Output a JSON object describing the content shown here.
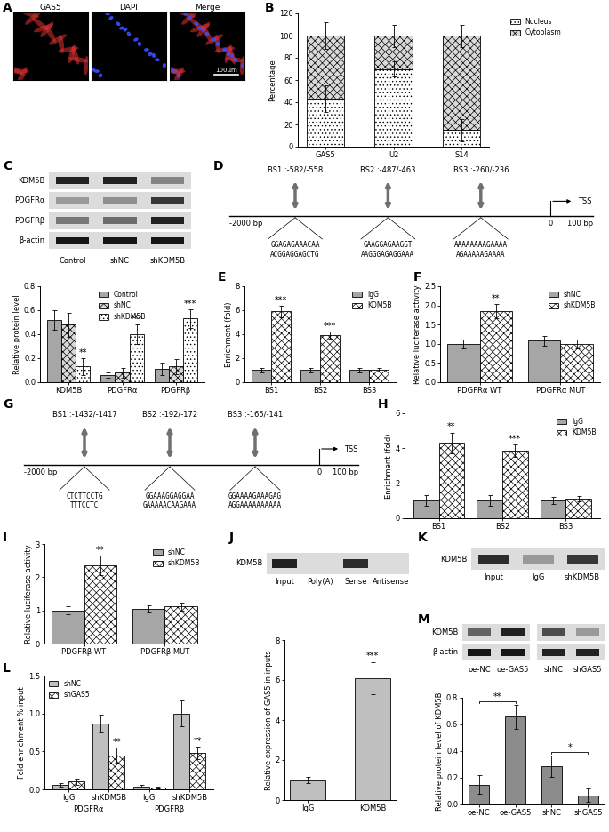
{
  "chart_data": [
    {
      "panel_label": "B",
      "type": "bar",
      "stacked": true,
      "categories": [
        "GAS5",
        "U2",
        "S14"
      ],
      "series": [
        {
          "name": "Nucleus",
          "color": "#ffffff",
          "values": [
            43,
            70,
            15
          ],
          "error": [
            12,
            7,
            10
          ]
        },
        {
          "name": "Cytoplasm",
          "color": "#d9d9d9",
          "values": [
            57,
            30,
            85
          ],
          "error": [
            12,
            10,
            10
          ]
        }
      ],
      "ylabel": "Percentage",
      "ylim": [
        0,
        120
      ],
      "yticks": [
        0,
        20,
        40,
        60,
        80,
        100,
        120
      ],
      "legend": "upper right"
    },
    {
      "type": "bar",
      "categories": [
        "KDM5B",
        "PDGFRα",
        "PDGFRβ"
      ],
      "series": [
        {
          "name": "Control",
          "color": "#a6a6a6",
          "values": [
            0.52,
            0.06,
            0.11
          ],
          "error": [
            0.08,
            0.02,
            0.05
          ]
        },
        {
          "name": "shNC",
          "color": "#d9d9d9",
          "values": [
            0.48,
            0.08,
            0.13
          ],
          "error": [
            0.1,
            0.04,
            0.06
          ]
        },
        {
          "name": "shKDM5B",
          "color": "#ffffff",
          "values": [
            0.13,
            0.4,
            0.53
          ],
          "error": [
            0.07,
            0.08,
            0.08
          ]
        }
      ],
      "ylabel": "Relative protein level",
      "ylim": [
        0.0,
        0.8
      ],
      "yticks": [
        0.0,
        0.2,
        0.4,
        0.6,
        0.8
      ],
      "legend": "upper center",
      "annotations": [
        {
          "category": 0,
          "series": "shKDM5B",
          "text": "**"
        },
        {
          "category": 1,
          "series": "shKDM5B",
          "text": "***"
        },
        {
          "category": 2,
          "series": "shKDM5B",
          "text": "***"
        }
      ]
    },
    {
      "panel_label": "E",
      "type": "bar",
      "categories": [
        "BS1",
        "BS2",
        "BS3"
      ],
      "series": [
        {
          "name": "IgG",
          "color": "#a6a6a6",
          "values": [
            1,
            1,
            1
          ],
          "error": [
            0.2,
            0.15,
            0.2
          ]
        },
        {
          "name": "KDM5B",
          "color": "#ffffff",
          "values": [
            5.9,
            3.9,
            1.05
          ],
          "error": [
            0.5,
            0.3,
            0.15
          ]
        }
      ],
      "ylabel": "Enrichment (fold)",
      "ylim": [
        0,
        8
      ],
      "yticks": [
        0,
        2,
        4,
        6,
        8
      ],
      "legend": "upper right",
      "annotations": [
        {
          "category": 0,
          "series": "KDM5B",
          "text": "***"
        },
        {
          "category": 1,
          "series": "KDM5B",
          "text": "***"
        }
      ]
    },
    {
      "panel_label": "F",
      "type": "bar",
      "categories": [
        "PDGFRα WT",
        "PDGFRα MUT"
      ],
      "series": [
        {
          "name": "shNC",
          "color": "#a6a6a6",
          "values": [
            1.0,
            1.08
          ],
          "error": [
            0.12,
            0.12
          ]
        },
        {
          "name": "shKDM5B",
          "color": "#ffffff",
          "values": [
            1.85,
            1.0
          ],
          "error": [
            0.18,
            0.12
          ]
        }
      ],
      "ylabel": "Relative luciferase activity",
      "ylim": [
        0.0,
        2.5
      ],
      "yticks": [
        0.0,
        0.5,
        1.0,
        1.5,
        2.0,
        2.5
      ],
      "legend": "upper right",
      "annotations": [
        {
          "category": 0,
          "series": "shKDM5B",
          "text": "**"
        }
      ]
    },
    {
      "panel_label": "H",
      "type": "bar",
      "categories": [
        "BS1",
        "BS2",
        "BS3"
      ],
      "series": [
        {
          "name": "IgG",
          "color": "#a6a6a6",
          "values": [
            1,
            1,
            1
          ],
          "error": [
            0.3,
            0.3,
            0.2
          ]
        },
        {
          "name": "KDM5B",
          "color": "#ffffff",
          "values": [
            4.3,
            3.85,
            1.1
          ],
          "error": [
            0.6,
            0.35,
            0.15
          ]
        }
      ],
      "ylabel": "Enrichment (fold)",
      "ylim": [
        0,
        6
      ],
      "yticks": [
        0,
        2,
        4,
        6
      ],
      "legend": "upper right",
      "annotations": [
        {
          "category": 0,
          "series": "KDM5B",
          "text": "**"
        },
        {
          "category": 1,
          "series": "KDM5B",
          "text": "***"
        }
      ]
    },
    {
      "panel_label": "I",
      "type": "bar",
      "categories": [
        "PDGFRβ WT",
        "PDGFRβ MUT"
      ],
      "series": [
        {
          "name": "shNC",
          "color": "#a6a6a6",
          "values": [
            1.0,
            1.05
          ],
          "error": [
            0.12,
            0.1
          ]
        },
        {
          "name": "shKDM5B",
          "color": "#ffffff",
          "values": [
            2.35,
            1.12
          ],
          "error": [
            0.3,
            0.12
          ]
        }
      ],
      "ylabel": "Relative luciferase activity",
      "ylim": [
        0,
        3
      ],
      "yticks": [
        0,
        1,
        2,
        3
      ],
      "legend": "upper right",
      "annotations": [
        {
          "category": 0,
          "series": "shKDM5B",
          "text": "**"
        }
      ]
    },
    {
      "type": "bar",
      "categories": [
        "IgG",
        "KDM5B"
      ],
      "values": [
        1.0,
        6.1
      ],
      "error": [
        0.15,
        0.8
      ],
      "color": "#bfbfbf",
      "ylabel": "Relative expression of GAS5 in inputs",
      "ylim": [
        0,
        8
      ],
      "yticks": [
        0,
        2,
        4,
        6,
        8
      ],
      "annotations": [
        {
          "category": 1,
          "text": "***"
        }
      ]
    },
    {
      "panel_label": "L",
      "type": "bar",
      "categories": [
        "IgG",
        "shKDM5B",
        "IgG",
        "shKDM5B"
      ],
      "group_labels": [
        "PDGFRα",
        "PDGFRβ"
      ],
      "series": [
        {
          "name": "shNC",
          "color": "#bfbfbf",
          "values": [
            0.06,
            0.87,
            0.04,
            1.0
          ],
          "error": [
            0.02,
            0.12,
            0.02,
            0.17
          ]
        },
        {
          "name": "shGAS5",
          "color": "#ffffff",
          "values": [
            0.1,
            0.45,
            0.02,
            0.48
          ],
          "error": [
            0.04,
            0.1,
            0.01,
            0.08
          ]
        }
      ],
      "ylabel": "Fold enrichment % input",
      "ylim": [
        0.0,
        1.5
      ],
      "yticks": [
        0.0,
        0.5,
        1.0,
        1.5
      ],
      "legend": "upper left",
      "annotations": [
        {
          "category": 1,
          "series": "shGAS5",
          "text": "**"
        },
        {
          "category": 3,
          "series": "shGAS5",
          "text": "**"
        }
      ]
    },
    {
      "type": "bar",
      "categories": [
        "oe-NC",
        "oe-GAS5",
        "shNC",
        "shGAS5"
      ],
      "values": [
        0.15,
        0.66,
        0.29,
        0.07
      ],
      "error": [
        0.07,
        0.09,
        0.08,
        0.05
      ],
      "color": "#8c8c8c",
      "ylabel": "Relative protein level of KDM5B",
      "ylim": [
        0.0,
        0.8
      ],
      "yticks": [
        0.0,
        0.2,
        0.4,
        0.6,
        0.8
      ],
      "brackets": [
        {
          "from": "oe-NC",
          "to": "oe-GAS5",
          "text": "**"
        },
        {
          "from": "shNC",
          "to": "shGAS5",
          "text": "*"
        }
      ]
    }
  ],
  "images": {
    "panel_label": "A",
    "panels": [
      "GAS5",
      "DAPI",
      "Merge"
    ],
    "colors": [
      "#e03030",
      "#3a4dff"
    ],
    "scale_bar": "100μm"
  },
  "diagrams": [
    {
      "panel_label": "D",
      "start": "-2000 bp",
      "tss_position": "0",
      "end": "100 bp",
      "tss_label": "TSS",
      "sites": [
        {
          "label": "BS1 :-582/-558",
          "sequence": [
            "GGAGAGAAACAA",
            "ACGGAGGAGCTG"
          ]
        },
        {
          "label": "BS2 :-487/-463",
          "sequence": [
            "GAAGGAGAAGGT",
            "AAGGGAGAGGAAA"
          ]
        },
        {
          "label": "BS3 :-260/-236",
          "sequence": [
            "AAAAAAAAGAAAA",
            "AGAAAAAGAAAA"
          ]
        }
      ]
    },
    {
      "panel_label": "G",
      "start": "-2000 bp",
      "tss_position": "0",
      "end": "100 bp",
      "tss_label": "TSS",
      "sites": [
        {
          "label": "BS1 :-1432/-1417",
          "sequence": [
            "CTCTTCCTG",
            "TTTCCTC"
          ]
        },
        {
          "label": "BS2 :-192/-172",
          "sequence": [
            "GGAAAGGAGGAA",
            "GAAAAACAAGAAA"
          ]
        },
        {
          "label": "BS3 :-165/-141",
          "sequence": [
            "GGAAAAGAAAGAG",
            "AGGAAAAAAAAAA"
          ]
        }
      ]
    }
  ],
  "blots": [
    {
      "panel_label": "C",
      "lanes": [
        [
          "Control",
          "shNC",
          "shKDM5B"
        ]
      ],
      "rows": [
        {
          "label": "KDM5B",
          "bands": [
            0.85,
            0.85,
            0.4
          ]
        },
        {
          "label": "PDGFRα",
          "bands": [
            0.3,
            0.35,
            0.75
          ]
        },
        {
          "label": "PDGFRβ",
          "bands": [
            0.45,
            0.5,
            0.85
          ]
        },
        {
          "label": "β-actin",
          "bands": [
            0.9,
            0.9,
            0.9
          ]
        }
      ]
    },
    {
      "panel_label": "J",
      "lanes": [
        [
          "Input",
          "Poly(A)",
          "Sense",
          "Antisense"
        ]
      ],
      "rows": [
        {
          "label": "KDM5B",
          "bands": [
            0.85,
            0.0,
            0.8,
            0.0
          ]
        }
      ]
    },
    {
      "panel_label": "K",
      "lanes": [
        [
          "Input",
          "IgG",
          "shKDM5B"
        ]
      ],
      "rows": [
        {
          "label": "KDM5B",
          "bands": [
            0.8,
            0.3,
            0.75
          ]
        }
      ]
    },
    {
      "panel_label": "M",
      "lanes": [
        [
          "oe-NC",
          "oe-GAS5"
        ],
        [
          "shNC",
          "shGAS5"
        ]
      ],
      "rows": [
        {
          "label": "KDM5B",
          "bands": [
            0.55,
            0.85,
            0.65,
            0.3
          ]
        },
        {
          "label": "β-actin",
          "bands": [
            0.9,
            0.9,
            0.85,
            0.85
          ]
        }
      ]
    }
  ]
}
